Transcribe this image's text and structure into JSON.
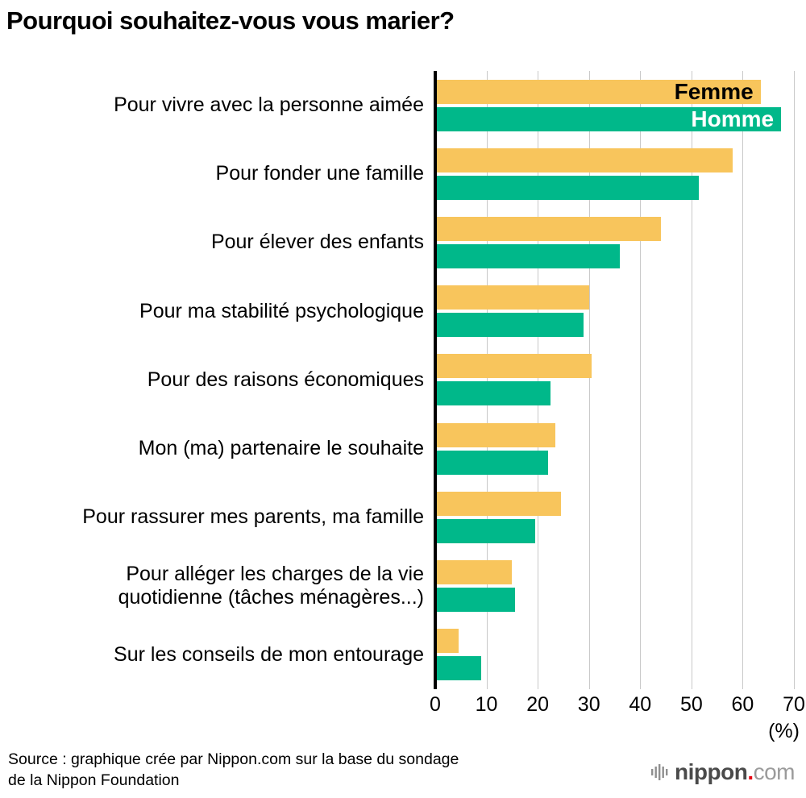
{
  "title": "Pourquoi souhaitez-vous vous marier?",
  "chart_data": {
    "type": "bar",
    "orientation": "horizontal",
    "title": "Pourquoi souhaitez-vous vous marier?",
    "categories": [
      "Pour vivre avec la personne aimée",
      "Pour fonder une famille",
      "Pour élever des enfants",
      "Pour ma stabilité psychologique",
      "Pour des raisons économiques",
      "Mon (ma) partenaire le souhaite",
      "Pour rassurer mes parents, ma famille",
      "Pour alléger les charges de la vie\nquotidienne (tâches ménagères...)",
      "Sur les conseils de mon entourage"
    ],
    "series": [
      {
        "name": "Femme",
        "color": "#F8C55C",
        "label_color": "#000000",
        "values": [
          63.5,
          58,
          44,
          30,
          30.5,
          23.5,
          24.5,
          15,
          4.5
        ]
      },
      {
        "name": "Homme",
        "color": "#00B88A",
        "label_color": "#ffffff",
        "values": [
          67.5,
          51.5,
          36,
          29,
          22.5,
          22,
          19.5,
          15.5,
          9
        ]
      }
    ],
    "xlabel": "(%)",
    "xlim": [
      0,
      70
    ],
    "xticks": [
      0,
      10,
      20,
      30,
      40,
      50,
      60,
      70
    ],
    "grid": true,
    "gridline_color": "#c9c9c9",
    "axis_color": "#000000",
    "legend_position": "inside-first-bars"
  },
  "source": {
    "line1": "Source : graphique crée par Nippon.com sur la base du sondage",
    "line2": "de la Nippon Foundation"
  },
  "logo": {
    "name": "nippon",
    "dot": ".",
    "tld": "com",
    "accent_color": "#e60012"
  }
}
